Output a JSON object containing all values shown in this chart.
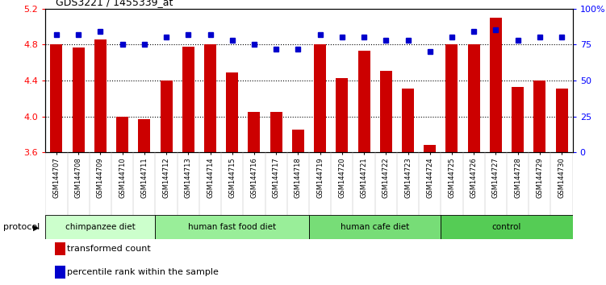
{
  "title": "GDS3221 / 1455339_at",
  "categories": [
    "GSM144707",
    "GSM144708",
    "GSM144709",
    "GSM144710",
    "GSM144711",
    "GSM144712",
    "GSM144713",
    "GSM144714",
    "GSM144715",
    "GSM144716",
    "GSM144717",
    "GSM144718",
    "GSM144719",
    "GSM144720",
    "GSM144721",
    "GSM144722",
    "GSM144723",
    "GSM144724",
    "GSM144725",
    "GSM144726",
    "GSM144727",
    "GSM144728",
    "GSM144729",
    "GSM144730"
  ],
  "bar_values": [
    4.8,
    4.77,
    4.86,
    4.0,
    3.97,
    4.4,
    4.78,
    4.8,
    4.49,
    4.05,
    4.05,
    3.85,
    4.8,
    4.43,
    4.73,
    4.51,
    4.31,
    3.68,
    4.8,
    4.8,
    5.1,
    4.33,
    4.4,
    4.31
  ],
  "percentile_values": [
    82,
    82,
    84,
    75,
    75,
    80,
    82,
    82,
    78,
    75,
    72,
    72,
    82,
    80,
    80,
    78,
    78,
    70,
    80,
    84,
    85,
    78,
    80,
    80
  ],
  "bar_color": "#cc0000",
  "dot_color": "#0000cc",
  "ylim_left": [
    3.6,
    5.2
  ],
  "ylim_right": [
    0,
    100
  ],
  "yticks_left": [
    3.6,
    4.0,
    4.4,
    4.8,
    5.2
  ],
  "yticks_right": [
    0,
    25,
    50,
    75,
    100
  ],
  "ytick_labels_right": [
    "0",
    "25",
    "50",
    "75",
    "100%"
  ],
  "grid_values": [
    4.0,
    4.4,
    4.8
  ],
  "groups": [
    {
      "label": "chimpanzee diet",
      "start": 0,
      "end": 5,
      "color": "#ccffcc"
    },
    {
      "label": "human fast food diet",
      "start": 5,
      "end": 12,
      "color": "#99ee99"
    },
    {
      "label": "human cafe diet",
      "start": 12,
      "end": 18,
      "color": "#77dd77"
    },
    {
      "label": "control",
      "start": 18,
      "end": 24,
      "color": "#55cc55"
    }
  ],
  "legend_bar_label": "transformed count",
  "legend_dot_label": "percentile rank within the sample",
  "protocol_label": "protocol",
  "bar_bottom": 3.6
}
